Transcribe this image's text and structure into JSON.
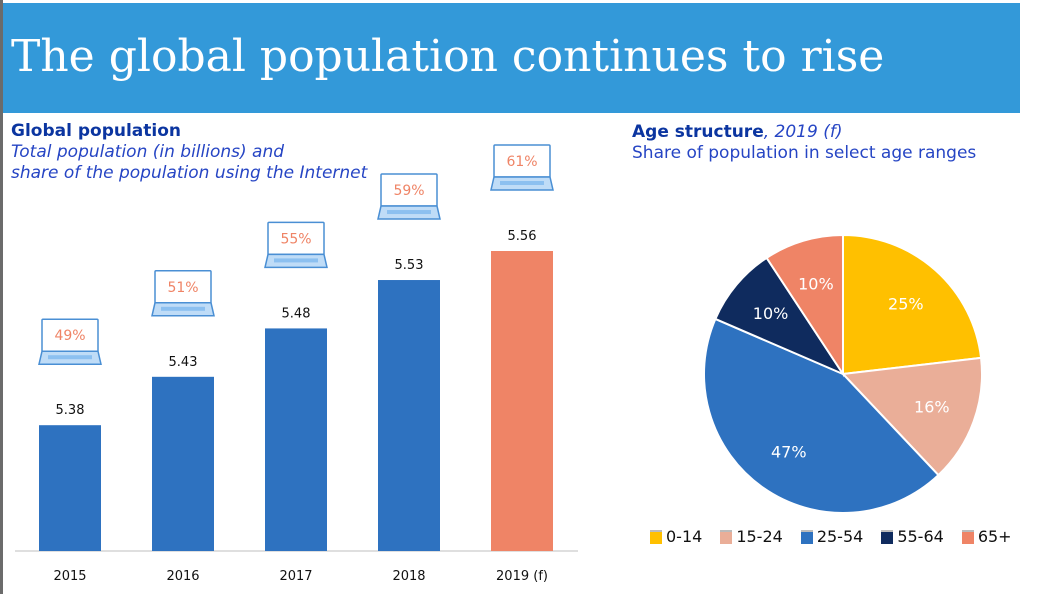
{
  "slide": {
    "title": "The global population continues to rise"
  },
  "chart_data": [
    {
      "type": "bar",
      "title": "Global population",
      "subtitle": [
        "Total population (in billions) and",
        "share of the population using the Internet"
      ],
      "categories": [
        "2015",
        "2016",
        "2017",
        "2018",
        "2019 (f)"
      ],
      "values": [
        5.38,
        5.43,
        5.48,
        5.53,
        5.56
      ],
      "value_labels": [
        "5.38",
        "5.43",
        "5.48",
        "5.53",
        "5.56"
      ],
      "internet_share_labels": [
        "49%",
        "51%",
        "55%",
        "59%",
        "61%"
      ],
      "internet_share": [
        49,
        51,
        55,
        59,
        61
      ],
      "ylim": [
        5.25,
        5.6
      ],
      "colors": {
        "actual": "#2e72c0",
        "forecast": "#ef8466",
        "share_text": "#ef8466"
      },
      "grid": false,
      "icon": "laptop-icon"
    },
    {
      "type": "pie",
      "title": "Age structure",
      "title_suffix": ", 2019 (f)",
      "subtitle": "Share of population in select age ranges",
      "labels": [
        "0-14",
        "15-24",
        "25-54",
        "55-64",
        "65+"
      ],
      "values": [
        25,
        16,
        47,
        10,
        10
      ],
      "value_labels": [
        "25%",
        "16%",
        "47%",
        "10%",
        "10%"
      ],
      "colors": [
        "#ffc000",
        "#eaae98",
        "#2e72c0",
        "#0f2b5e",
        "#ef8466"
      ],
      "legend": "bottom"
    }
  ]
}
